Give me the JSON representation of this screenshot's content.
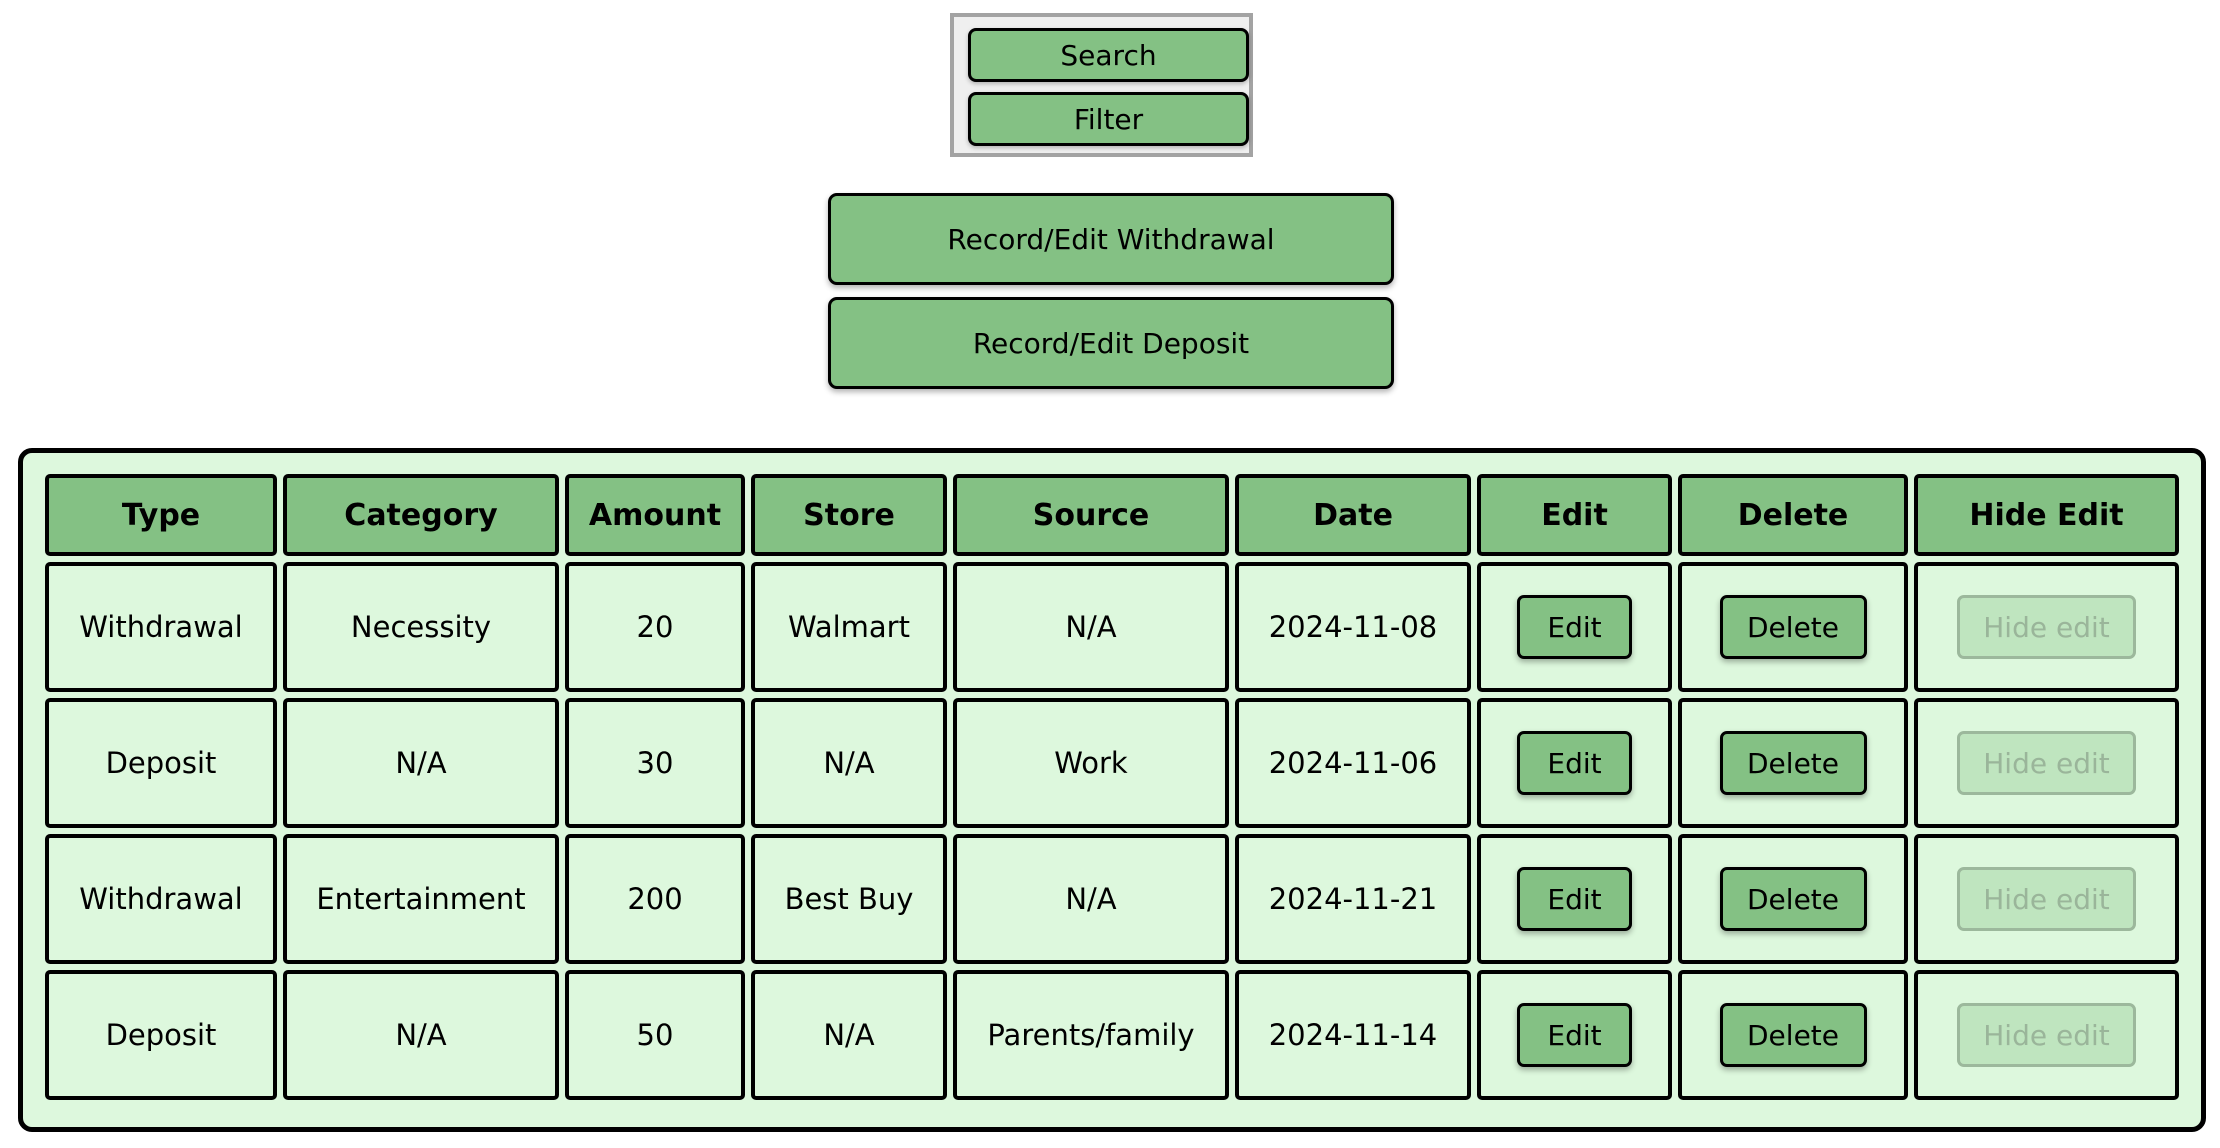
{
  "toolbar": {
    "search_label": "Search",
    "filter_label": "Filter"
  },
  "actions": {
    "record_withdrawal_label": "Record/Edit Withdrawal",
    "record_deposit_label": "Record/Edit Deposit"
  },
  "table": {
    "headers": [
      "Type",
      "Category",
      "Amount",
      "Store",
      "Source",
      "Date",
      "Edit",
      "Delete",
      "Hide Edit"
    ],
    "rows": [
      {
        "type": "Withdrawal",
        "category": "Necessity",
        "amount": "20",
        "store": "Walmart",
        "source": "N/A",
        "date": "2024-11-08"
      },
      {
        "type": "Deposit",
        "category": "N/A",
        "amount": "30",
        "store": "N/A",
        "source": "Work",
        "date": "2024-11-06"
      },
      {
        "type": "Withdrawal",
        "category": "Entertainment",
        "amount": "200",
        "store": "Best Buy",
        "source": "N/A",
        "date": "2024-11-21"
      },
      {
        "type": "Deposit",
        "category": "N/A",
        "amount": "50",
        "store": "N/A",
        "source": "Parents/family",
        "date": "2024-11-14"
      }
    ],
    "edit_button_label": "Edit",
    "delete_button_label": "Delete",
    "hide_edit_button_label": "Hide edit",
    "hide_edit_disabled": true
  },
  "colors": {
    "button_green": "#84c184",
    "panel_green": "#ddf8dd",
    "disabled_green": "#bfe5bf",
    "disabled_text": "#9ab59a",
    "border": "#000000",
    "search_box_border": "#a3a3a3"
  }
}
